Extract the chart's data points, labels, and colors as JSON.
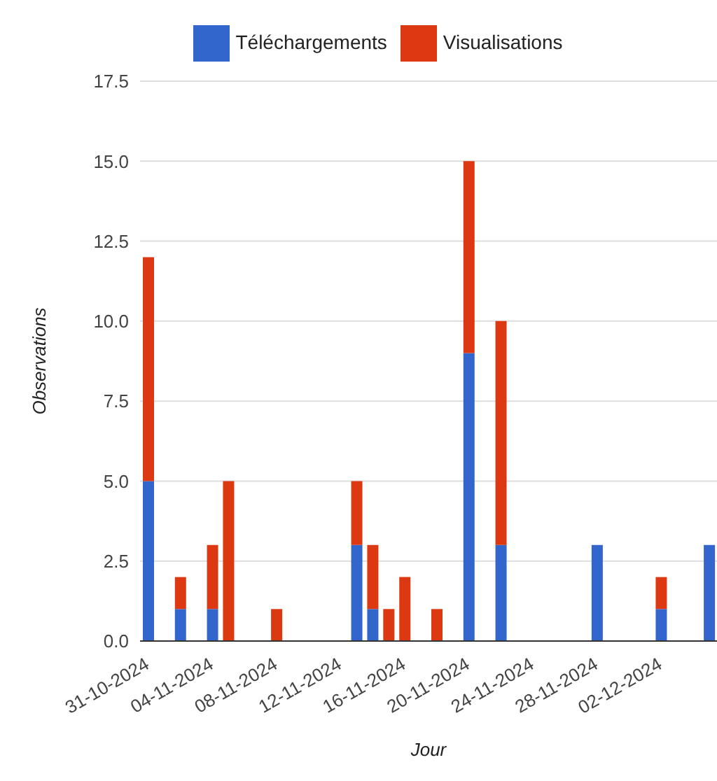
{
  "chart_data": {
    "type": "bar",
    "stacked": true,
    "xlabel": "Jour",
    "ylabel": "Observations",
    "x": [
      "2024-10-31",
      "2024-11-02",
      "2024-11-04",
      "2024-11-05",
      "2024-11-08",
      "2024-11-13",
      "2024-11-14",
      "2024-11-15",
      "2024-11-16",
      "2024-11-18",
      "2024-11-20",
      "2024-11-22",
      "2024-11-28",
      "2024-12-02",
      "2024-12-05"
    ],
    "series": [
      {
        "name": "Téléchargements",
        "color": "#3366cc",
        "values": [
          5,
          1,
          1,
          0,
          0,
          3,
          1,
          0,
          0,
          0,
          9,
          3,
          3,
          1,
          3
        ]
      },
      {
        "name": "Visualisations",
        "color": "#dc3912",
        "values": [
          7,
          1,
          2,
          5,
          1,
          2,
          2,
          1,
          2,
          1,
          6,
          7,
          0,
          1,
          null
        ]
      }
    ],
    "xlim": [
      "2024-10-30T12:00",
      "2024-12-05T12:00"
    ],
    "xticks": [
      {
        "value": "2024-10-31",
        "label": "31-10-2024"
      },
      {
        "value": "2024-11-04",
        "label": "04-11-2024"
      },
      {
        "value": "2024-11-08",
        "label": "08-11-2024"
      },
      {
        "value": "2024-11-12",
        "label": "12-11-2024"
      },
      {
        "value": "2024-11-16",
        "label": "16-11-2024"
      },
      {
        "value": "2024-11-20",
        "label": "20-11-2024"
      },
      {
        "value": "2024-11-24",
        "label": "24-11-2024"
      },
      {
        "value": "2024-11-28",
        "label": "28-11-2024"
      },
      {
        "value": "2024-12-02",
        "label": "02-12-2024"
      }
    ],
    "ylim": [
      0,
      17.5
    ],
    "yticks": [
      {
        "value": 0,
        "label": "0.0"
      },
      {
        "value": 2.5,
        "label": "2.5"
      },
      {
        "value": 5,
        "label": "5.0"
      },
      {
        "value": 7.5,
        "label": "7.5"
      },
      {
        "value": 10,
        "label": "10.0"
      },
      {
        "value": 12.5,
        "label": "12.5"
      },
      {
        "value": 15,
        "label": "15.0"
      },
      {
        "value": 17.5,
        "label": "17.5"
      }
    ],
    "grid": "y",
    "legend": "top"
  }
}
